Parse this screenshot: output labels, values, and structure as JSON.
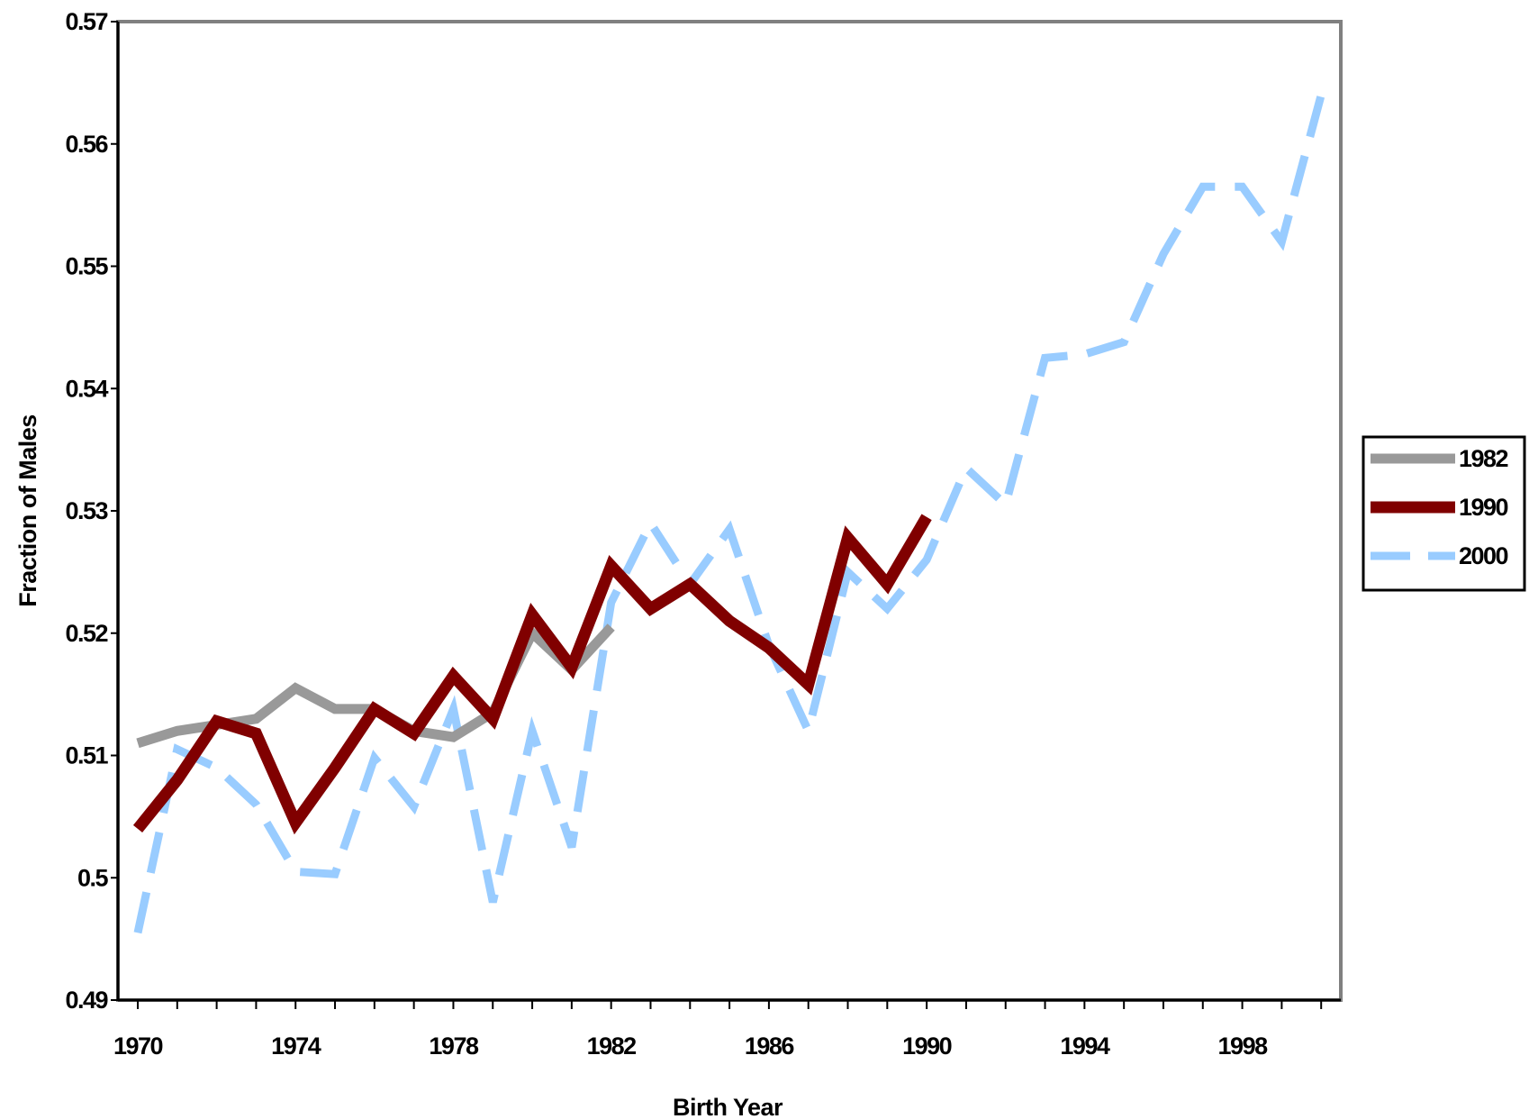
{
  "chart_data": {
    "type": "line",
    "title": "",
    "xlabel": "Birth Year",
    "ylabel": "Fraction of Males",
    "xlim": [
      1970,
      2001
    ],
    "ylim": [
      0.49,
      0.57
    ],
    "x_ticks": [
      1970,
      1974,
      1978,
      1982,
      1986,
      1990,
      1994,
      1998
    ],
    "x_tick_labels": [
      "1970",
      "1974",
      "1978",
      "1982",
      "1986",
      "1990",
      "1994",
      "1998"
    ],
    "y_ticks": [
      0.49,
      0.5,
      0.51,
      0.52,
      0.53,
      0.54,
      0.55,
      0.56,
      0.57
    ],
    "y_tick_labels": [
      "0.49",
      "0.5",
      "0.51",
      "0.52",
      "0.53",
      "0.54",
      "0.55",
      "0.56",
      "0.57"
    ],
    "grid": false,
    "legend": "right",
    "series": [
      {
        "name": "1982",
        "color": "#999999",
        "style": "solid",
        "x": [
          1970,
          1971,
          1972,
          1973,
          1974,
          1975,
          1976,
          1977,
          1978,
          1979,
          1980,
          1981,
          1982
        ],
        "y": [
          0.511,
          0.512,
          0.5125,
          0.513,
          0.5155,
          0.5138,
          0.5138,
          0.512,
          0.5115,
          0.5135,
          0.52,
          0.517,
          0.5205
        ]
      },
      {
        "name": "1990",
        "color": "#800000",
        "style": "solid",
        "x": [
          1970,
          1971,
          1972,
          1973,
          1974,
          1975,
          1976,
          1977,
          1978,
          1979,
          1980,
          1981,
          1982,
          1983,
          1984,
          1985,
          1986,
          1987,
          1988,
          1989,
          1990
        ],
        "y": [
          0.504,
          0.508,
          0.5128,
          0.5118,
          0.5045,
          0.509,
          0.5138,
          0.5118,
          0.5165,
          0.513,
          0.5215,
          0.5172,
          0.5255,
          0.522,
          0.524,
          0.521,
          0.5188,
          0.5158,
          0.5278,
          0.524,
          0.5295
        ]
      },
      {
        "name": "2000",
        "color": "#99ccff",
        "style": "dashed",
        "x": [
          1970,
          1971,
          1972,
          1973,
          1974,
          1975,
          1976,
          1977,
          1978,
          1979,
          1980,
          1981,
          1982,
          1983,
          1984,
          1985,
          1986,
          1987,
          1988,
          1989,
          1990,
          1991,
          1992,
          1993,
          1994,
          1995,
          1996,
          1997,
          1998,
          1999,
          2000
        ],
        "y": [
          0.4955,
          0.5105,
          0.509,
          0.506,
          0.5005,
          0.5003,
          0.5098,
          0.5058,
          0.5138,
          0.498,
          0.512,
          0.5025,
          0.5225,
          0.529,
          0.524,
          0.5285,
          0.519,
          0.512,
          0.525,
          0.522,
          0.526,
          0.5335,
          0.5305,
          0.5425,
          0.5428,
          0.5438,
          0.551,
          0.5565,
          0.5565,
          0.552,
          0.564
        ]
      }
    ]
  }
}
